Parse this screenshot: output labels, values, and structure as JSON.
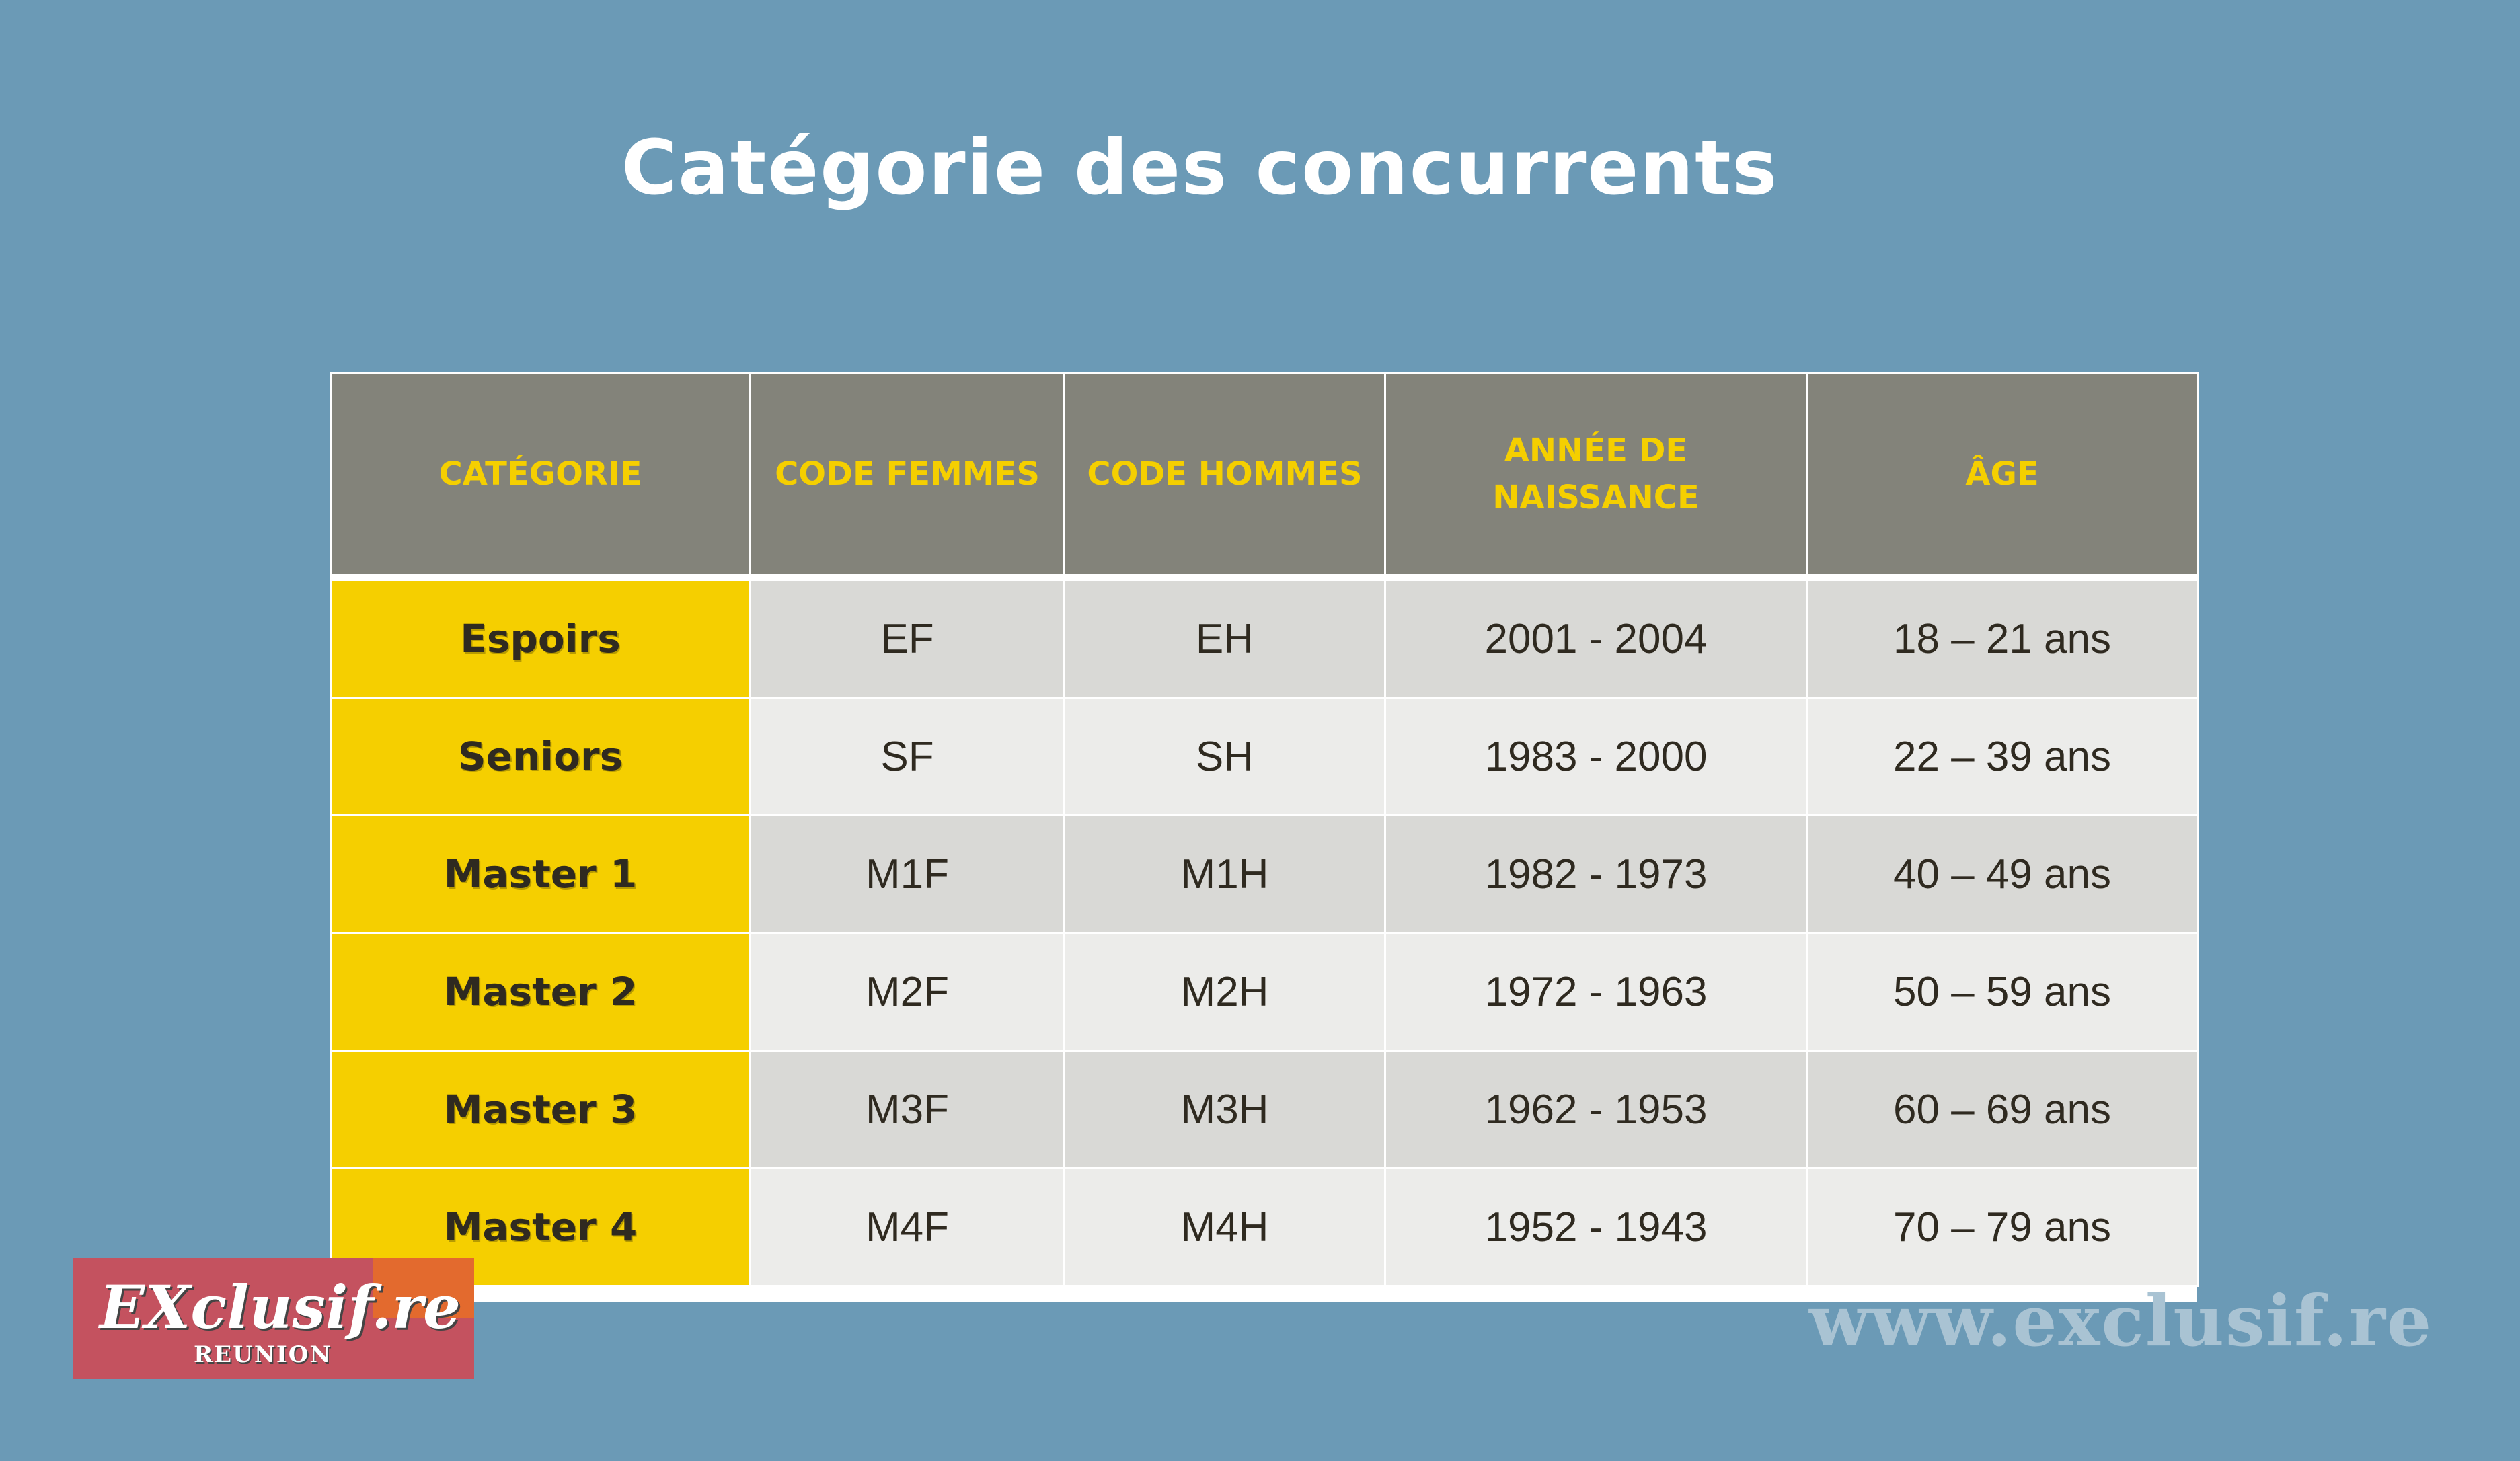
{
  "title": "Catégorie des concurrents",
  "table": {
    "headers": [
      "CATÉGORIE",
      "CODE FEMMES",
      "CODE HOMMES",
      "ANNÉE DE NAISSANCE",
      "ÂGE"
    ],
    "rows": [
      {
        "category": "Espoirs",
        "code_f": "EF",
        "code_h": "EH",
        "years": "2001 - 2004",
        "age": "18 – 21 ans"
      },
      {
        "category": "Seniors",
        "code_f": "SF",
        "code_h": "SH",
        "years": "1983 - 2000",
        "age": "22 – 39 ans"
      },
      {
        "category": "Master 1",
        "code_f": "M1F",
        "code_h": "M1H",
        "years": "1982 - 1973",
        "age": "40 – 49 ans"
      },
      {
        "category": "Master 2",
        "code_f": "M2F",
        "code_h": "M2H",
        "years": "1972 - 1963",
        "age": "50 – 59 ans"
      },
      {
        "category": "Master 3",
        "code_f": "M3F",
        "code_h": "M3H",
        "years": "1962 - 1953",
        "age": "60 – 69 ans"
      },
      {
        "category": "Master 4",
        "code_f": "M4F",
        "code_h": "M4H",
        "years": "1952 - 1943",
        "age": "70 – 79 ans"
      }
    ]
  },
  "logo": {
    "text": "EXclusif.re",
    "subtitle": "REUNION"
  },
  "watermark": "www.exclusif.re",
  "colors": {
    "background": "#6b9ab6",
    "header_bg": "#83837a",
    "header_text": "#f5cf00",
    "category_bg": "#f5cf00",
    "row_odd": "#d9d9d6",
    "row_even": "#ececea",
    "logo_bg": "#c4525f"
  }
}
